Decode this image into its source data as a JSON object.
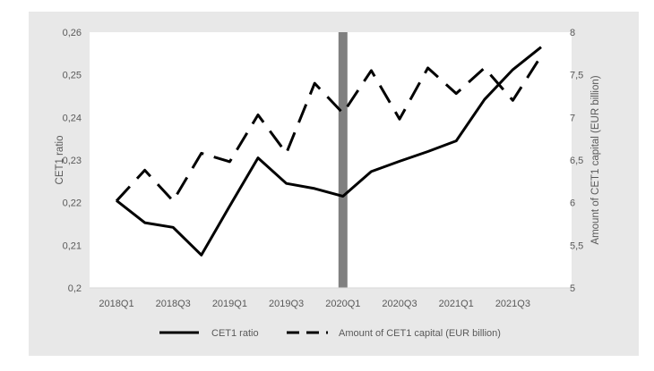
{
  "chart_data": {
    "type": "line",
    "x": [
      "2018Q1",
      "2018Q2",
      "2018Q3",
      "2018Q4",
      "2019Q1",
      "2019Q2",
      "2019Q3",
      "2019Q4",
      "2020Q1",
      "2020Q2",
      "2020Q3",
      "2020Q4",
      "2021Q1",
      "2021Q2",
      "2021Q3",
      "2021Q4"
    ],
    "x_tick_labels": [
      "2018Q1",
      "2018Q3",
      "2019Q1",
      "2019Q3",
      "2020Q1",
      "2020Q3",
      "2021Q1",
      "2021Q3"
    ],
    "series": [
      {
        "name": "CET1 ratio",
        "axis": "left",
        "style": "solid",
        "values": [
          0.2205,
          0.2153,
          0.2142,
          0.2077,
          0.2192,
          0.2305,
          0.2245,
          0.2233,
          0.2215,
          0.2273,
          0.2297,
          0.232,
          0.2345,
          0.2442,
          0.2512,
          0.2565
        ]
      },
      {
        "name": "Amount of CET1 capital (EUR billion)",
        "axis": "right",
        "style": "dashed",
        "values": [
          6.02,
          6.38,
          6.02,
          6.58,
          6.48,
          7.03,
          6.58,
          7.4,
          7.05,
          7.55,
          6.98,
          7.58,
          7.28,
          7.58,
          7.2,
          7.72
        ]
      }
    ],
    "ylabel_left": "CET1 ratio",
    "ylabel_right": "Amount of CET1 capital (EUR billion)",
    "ylim_left": [
      0.2,
      0.26
    ],
    "ylim_right": [
      5,
      8
    ],
    "yticks_left": [
      "0,2",
      "0,21",
      "0,22",
      "0,23",
      "0,24",
      "0,25",
      "0,26"
    ],
    "yticks_right": [
      "5",
      "5,5",
      "6",
      "6,5",
      "7",
      "7,5",
      "8"
    ],
    "highlight_x": "2020Q1",
    "legend_position": "bottom",
    "grid": false,
    "colors": {
      "lines": "#000000",
      "highlight": "#808080",
      "background": "#e8e8e8",
      "plot": "#ffffff",
      "text": "#595959"
    }
  }
}
